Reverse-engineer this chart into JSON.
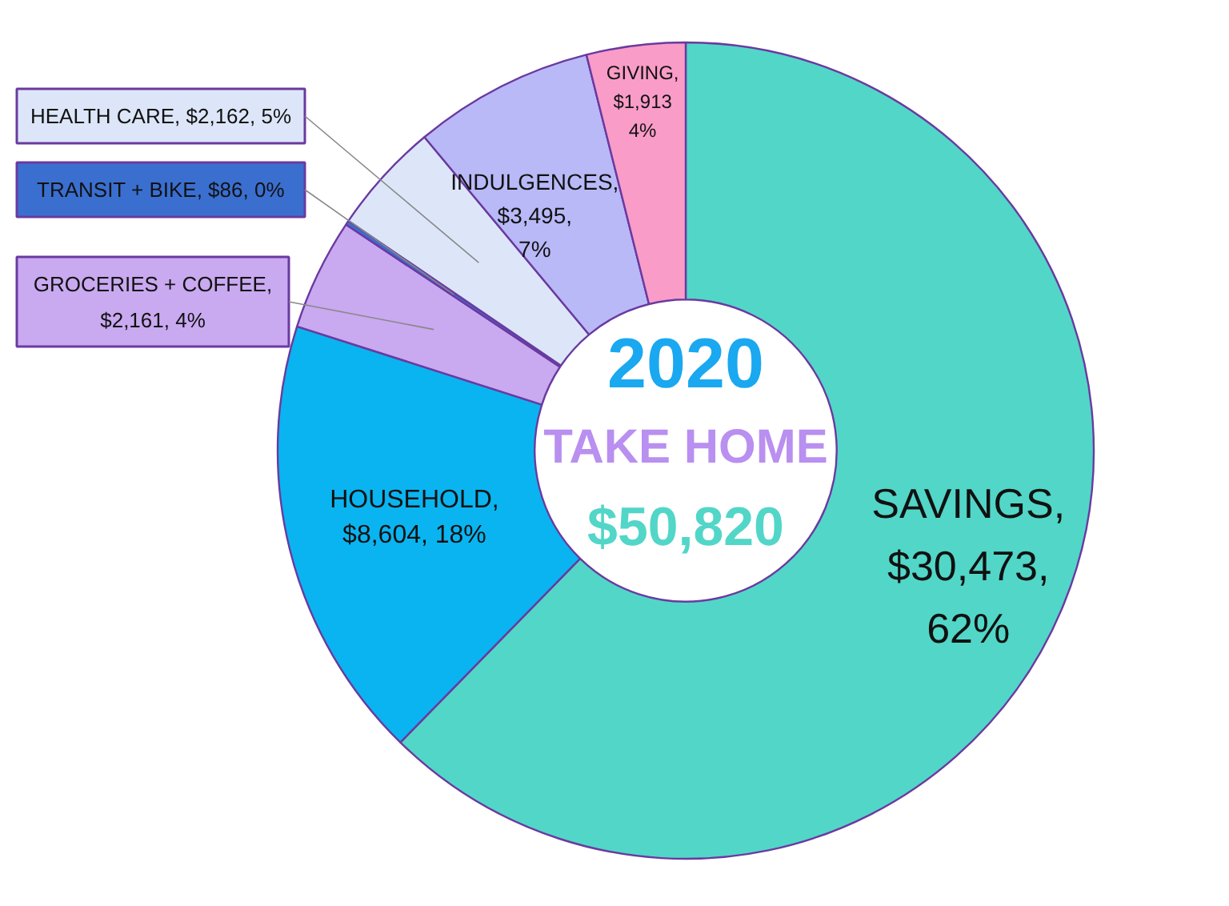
{
  "chart_data": {
    "type": "donut",
    "title": "2020",
    "subtitle": "TAKE HOME",
    "annotations": [
      "$50,820"
    ],
    "categories": [
      "SAVINGS, $30,473, 62%",
      "HOUSEHOLD, $8,604, 18%",
      "GROCERIES + COFFEE, $2,161, 4%",
      "TRANSIT + BIKE, $86, 0%",
      "HEALTH CARE, $2,162, 5%",
      "INDULGENCES, $3,495, 7%",
      "GIVING, $1,913 4%"
    ],
    "values": [
      30473,
      8604,
      2161,
      86,
      2162,
      3495,
      1913
    ],
    "colors": [
      "#52d6c8",
      "#0ab4f0",
      "#c9a9f0",
      "#3a6fd0",
      "#dce6f8",
      "#b9b9f8",
      "#f99cc8"
    ]
  }
}
